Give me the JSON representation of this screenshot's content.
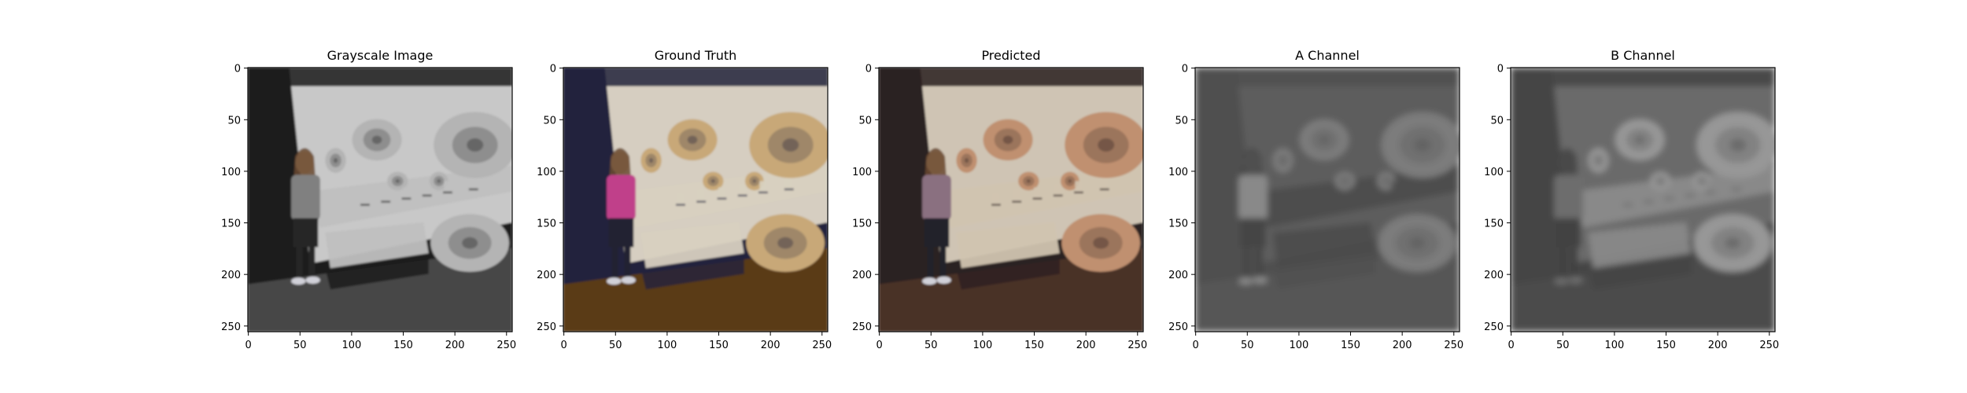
{
  "figure": {
    "panels": [
      {
        "id": "gray",
        "title": "Grayscale Image",
        "kind": "grayscale",
        "colors": {
          "bg": "#d2d2d2",
          "wall": "#1c1c1c",
          "floor": "#464646",
          "shelf": "#c0c0c0",
          "fossil": "#b4b4b4",
          "girl_top": "#808080",
          "girl_pants": "#262626"
        }
      },
      {
        "id": "truth",
        "title": "Ground Truth",
        "kind": "color",
        "colors": {
          "bg": "#e0d8c8",
          "wall": "#22223c",
          "floor": "#5a3a18",
          "shelf": "#d8d0c0",
          "fossil": "#c8a878",
          "girl_top": "#c0408a",
          "girl_pants": "#202230"
        }
      },
      {
        "id": "pred",
        "title": "Predicted",
        "kind": "color",
        "colors": {
          "bg": "#d8cdbd",
          "wall": "#2a2020",
          "floor": "#4a3028",
          "shelf": "#d0c4b0",
          "fossil": "#c09070",
          "girl_top": "#8a7080",
          "girl_pants": "#24222a"
        }
      },
      {
        "id": "a",
        "title": "A Channel",
        "kind": "channel",
        "colors": {
          "bg": "#5a5a5a",
          "wall": "#484848",
          "floor": "#505050",
          "shelf": "#464646",
          "fossil": "#7a7a7a",
          "girl_top": "#8a8a8a",
          "girl_pants": "#3c3c3c"
        }
      },
      {
        "id": "b",
        "title": "B Channel",
        "kind": "channel",
        "colors": {
          "bg": "#6c6c6c",
          "wall": "#3c3c3c",
          "floor": "#444444",
          "shelf": "#8a8a8a",
          "fossil": "#9a9a9a",
          "girl_top": "#6a6a6a",
          "girl_pants": "#3a3a3a"
        }
      }
    ],
    "x_ticks": [
      "0",
      "50",
      "100",
      "150",
      "200",
      "250"
    ],
    "y_ticks": [
      "0",
      "50",
      "100",
      "150",
      "200",
      "250"
    ]
  }
}
